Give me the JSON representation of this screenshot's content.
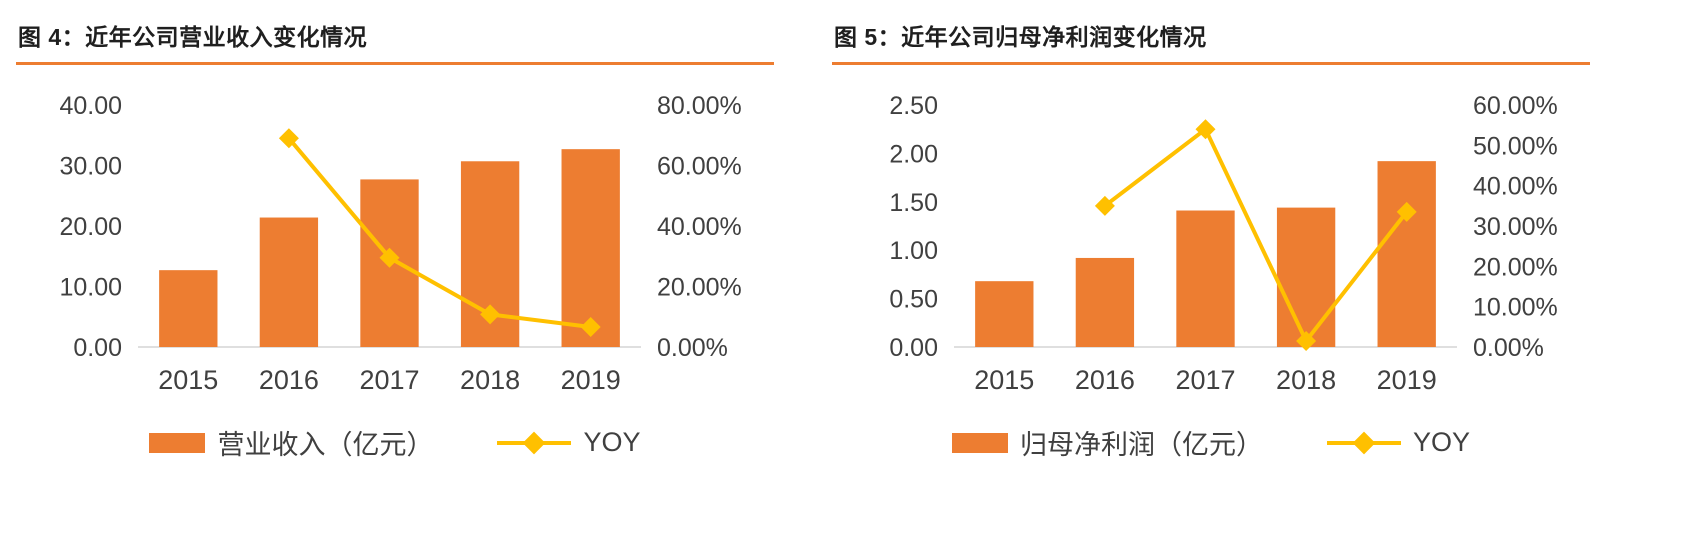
{
  "colors": {
    "bar": "#ED7D31",
    "line": "#FFC000",
    "divider": "#ED7D31",
    "title": "#1F1F1F",
    "tick": "#404040",
    "baseline": "#BFBFBF"
  },
  "chart_data": [
    {
      "type": "combo-bar-line",
      "title": "图 4：近年公司营业收入变化情况",
      "categories": [
        "2015",
        "2016",
        "2017",
        "2018",
        "2019"
      ],
      "series": [
        {
          "name": "营业收入（亿元）",
          "type": "bar",
          "axis": "left",
          "values": [
            12.7,
            21.4,
            27.7,
            30.7,
            32.7
          ]
        },
        {
          "name": "YOY",
          "type": "line",
          "axis": "right",
          "values": [
            null,
            69.0,
            29.5,
            10.8,
            6.6
          ]
        }
      ],
      "left_axis": {
        "min": 0,
        "max": 40,
        "step": 10,
        "format": "fixed2"
      },
      "right_axis": {
        "min": 0,
        "max": 80,
        "step": 20,
        "format": "percent2"
      },
      "grid": false,
      "legend_position": "bottom"
    },
    {
      "type": "combo-bar-line",
      "title": "图 5：近年公司归母净利润变化情况",
      "categories": [
        "2015",
        "2016",
        "2017",
        "2018",
        "2019"
      ],
      "series": [
        {
          "name": "归母净利润（亿元）",
          "type": "bar",
          "axis": "left",
          "values": [
            0.68,
            0.92,
            1.41,
            1.44,
            1.92
          ]
        },
        {
          "name": "YOY",
          "type": "line",
          "axis": "right",
          "values": [
            null,
            35.0,
            54.0,
            1.5,
            33.5
          ]
        }
      ],
      "left_axis": {
        "min": 0,
        "max": 2.5,
        "step": 0.5,
        "format": "fixed2"
      },
      "right_axis": {
        "min": 0,
        "max": 60,
        "step": 10,
        "format": "percent2"
      },
      "grid": false,
      "legend_position": "bottom"
    }
  ]
}
